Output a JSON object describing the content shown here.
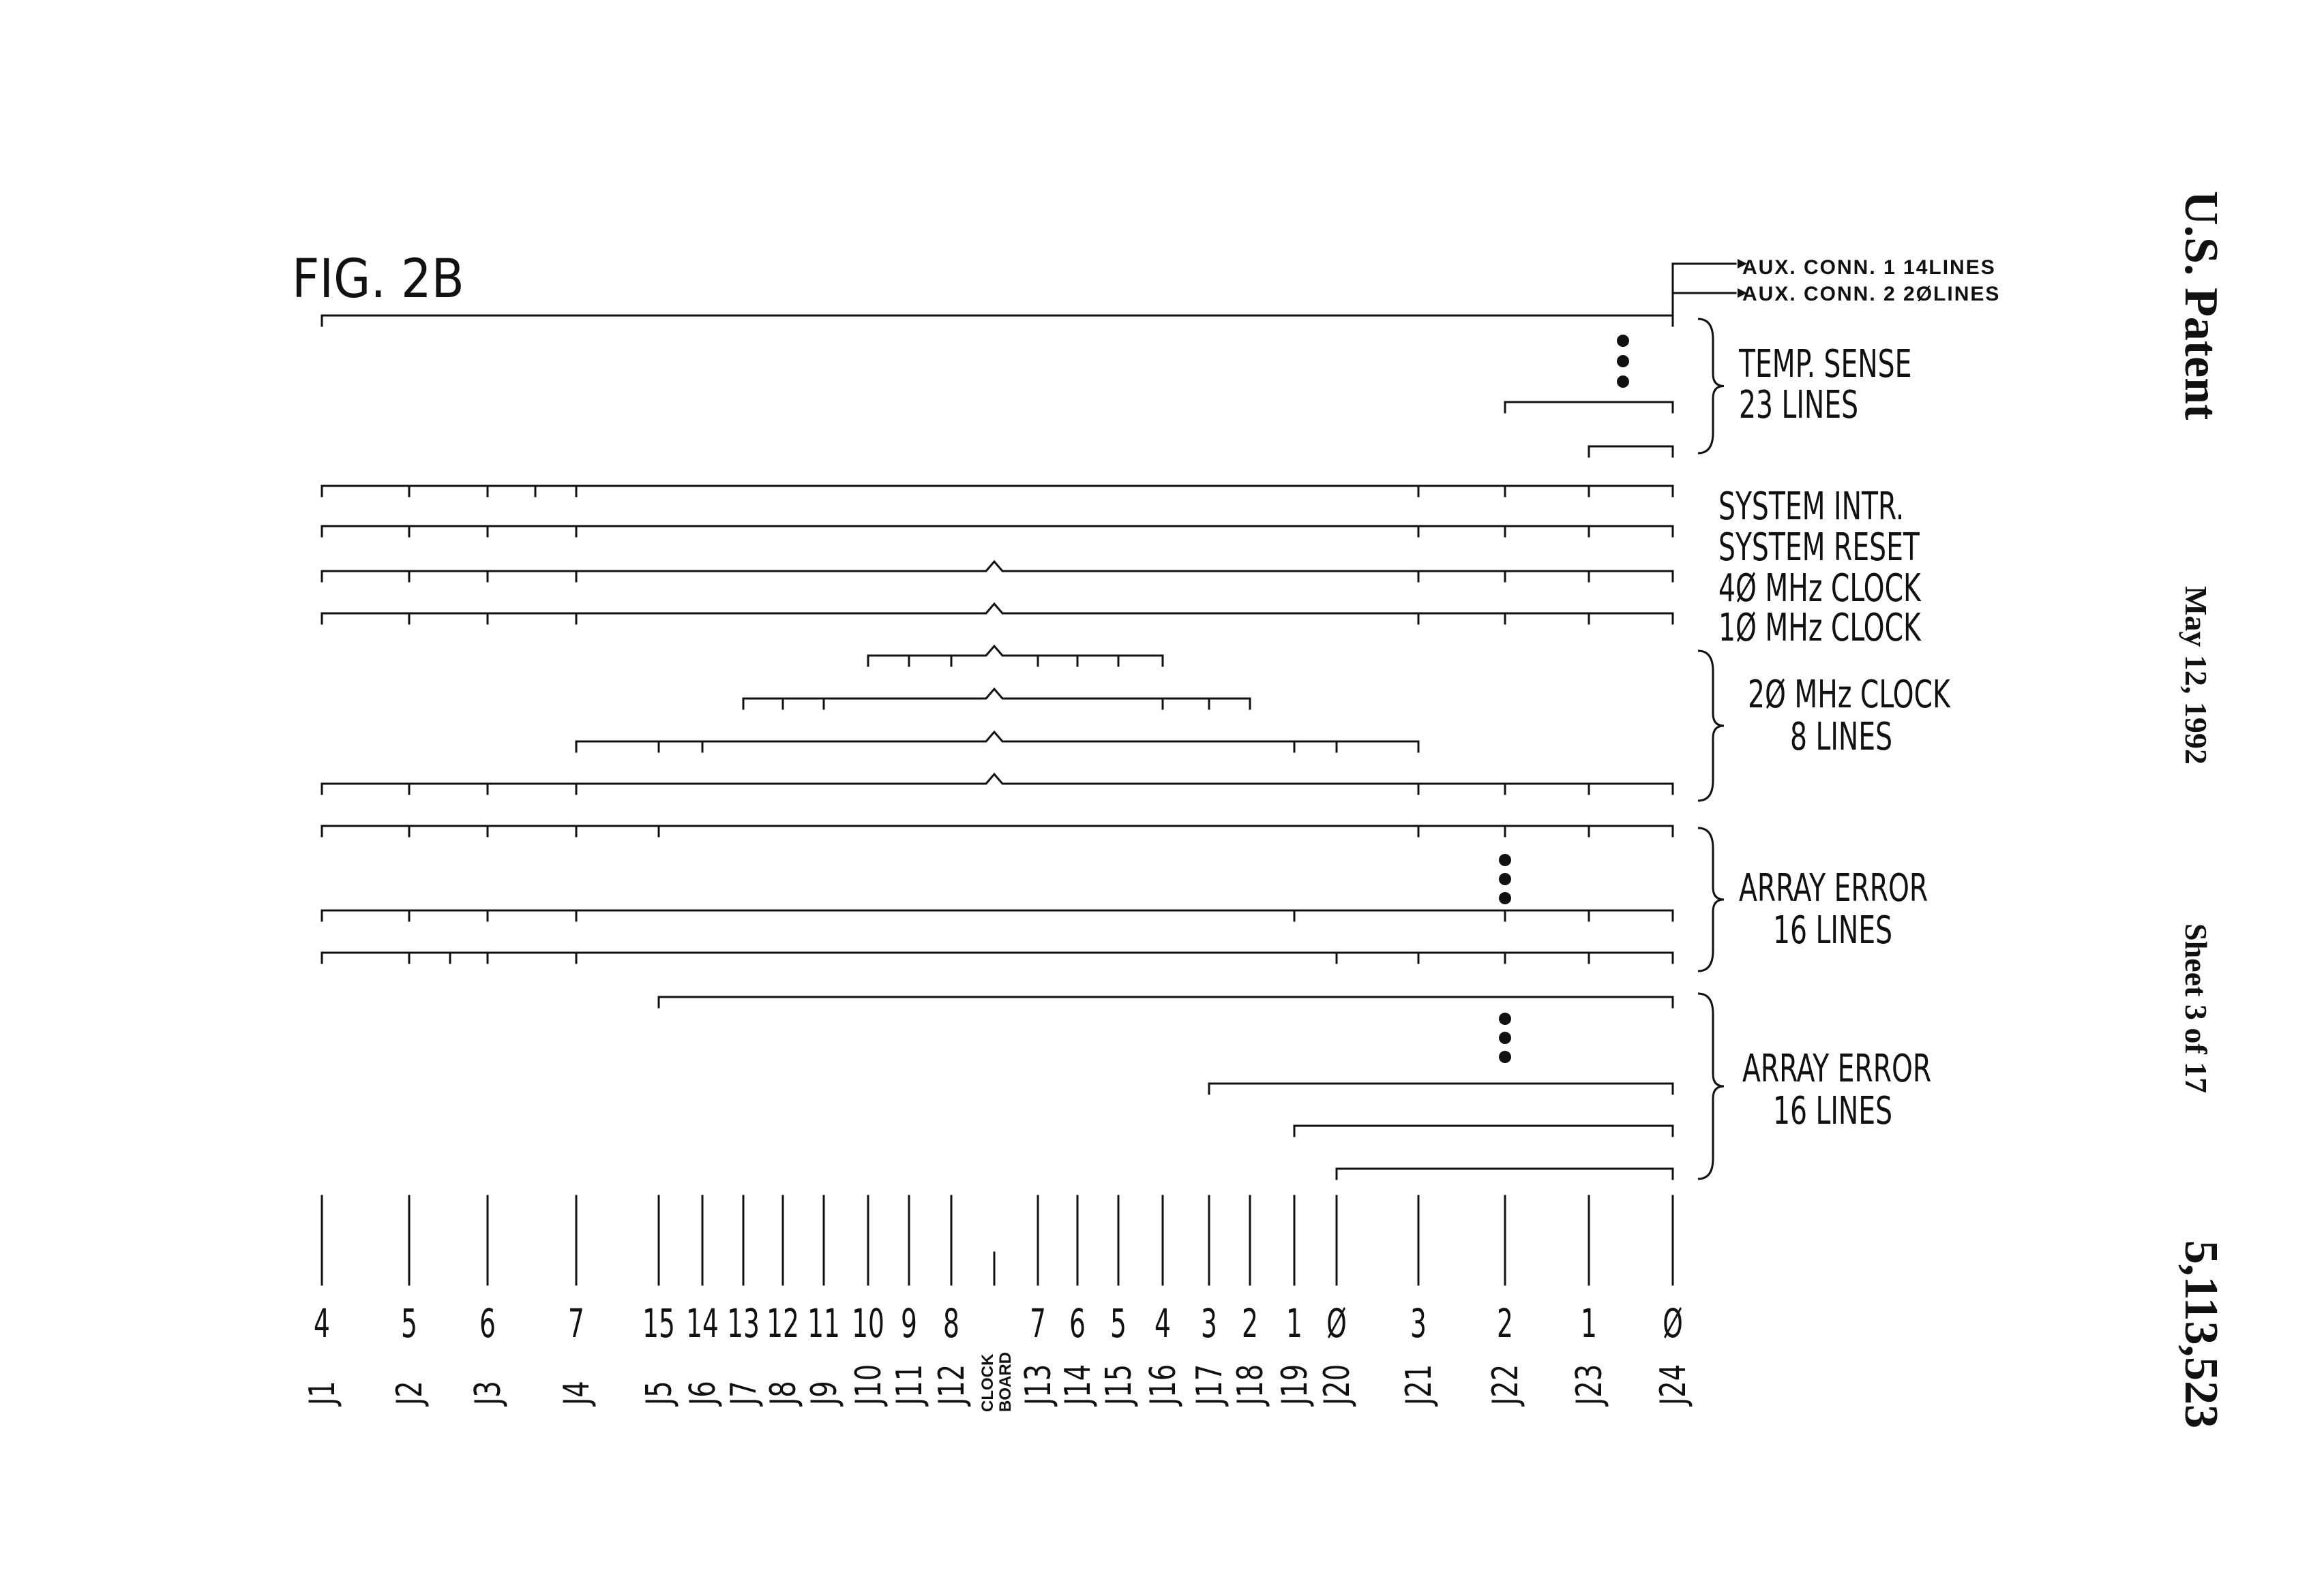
{
  "header": {
    "patent": "U.S. Patent",
    "date": "May 12, 1992",
    "sheet": "Sheet 3 of 17",
    "number": "5,113,523"
  },
  "figure": {
    "title": "FIG. 2B",
    "aux1": "AUX. CONN. 1 14LINES",
    "aux2": "AUX. CONN. 2 2ØLINES",
    "temp_l1": "TEMP. SENSE",
    "temp_l2": "23 LINES",
    "sys_intr": "SYSTEM INTR.",
    "sys_reset": "SYSTEM RESET",
    "clk40": "4Ø MHz CLOCK",
    "clk10": "1Ø MHz CLOCK",
    "clk20_l1": "2Ø MHz CLOCK",
    "clk20_l2": "8 LINES",
    "arr1_l1": "ARRAY ERROR",
    "arr1_l2": "16 LINES",
    "arr2_l1": "ARRAY ERROR",
    "arr2_l2": "16 LINES"
  },
  "slots": [
    {
      "num": "4",
      "name": "J1"
    },
    {
      "num": "5",
      "name": "J2"
    },
    {
      "num": "6",
      "name": "J3"
    },
    {
      "num": "7",
      "name": "J4"
    },
    {
      "num": "15",
      "name": "J5"
    },
    {
      "num": "14",
      "name": "J6"
    },
    {
      "num": "13",
      "name": "J7"
    },
    {
      "num": "12",
      "name": "J8"
    },
    {
      "num": "11",
      "name": "J9"
    },
    {
      "num": "10",
      "name": "J10"
    },
    {
      "num": "9",
      "name": "J11"
    },
    {
      "num": "8",
      "name": "J12"
    },
    {
      "num": "",
      "name": "CLOCK BOARD"
    },
    {
      "num": "7",
      "name": "J13"
    },
    {
      "num": "6",
      "name": "J14"
    },
    {
      "num": "5",
      "name": "J15"
    },
    {
      "num": "4",
      "name": "J16"
    },
    {
      "num": "3",
      "name": "J17"
    },
    {
      "num": "2",
      "name": "J18"
    },
    {
      "num": "1",
      "name": "J19"
    },
    {
      "num": "Ø",
      "name": "J20"
    },
    {
      "num": "3",
      "name": "J21"
    },
    {
      "num": "2",
      "name": "J22"
    },
    {
      "num": "1",
      "name": "J23"
    },
    {
      "num": "Ø",
      "name": "J24"
    }
  ]
}
